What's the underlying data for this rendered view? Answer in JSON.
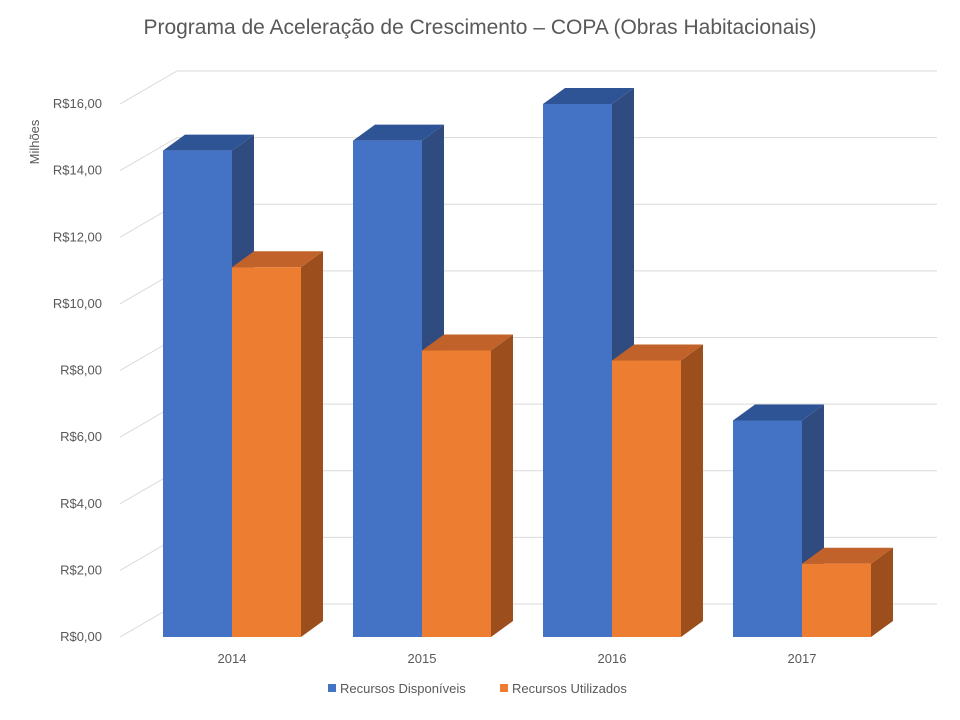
{
  "chart_data": {
    "type": "bar",
    "title": "Programa de Aceleração de Crescimento – COPA (Obras Habitacionais)",
    "ylabel": "Milhões",
    "xlabel": "",
    "categories": [
      "2014",
      "2015",
      "2016",
      "2017"
    ],
    "series": [
      {
        "name": "Recursos Disponíveis",
        "values": [
          14.6,
          14.9,
          16.0,
          6.5
        ],
        "color": "#4472c4",
        "side_color": "#2f4b80",
        "top_color": "#2f5496"
      },
      {
        "name": "Recursos Utilizados",
        "values": [
          11.1,
          8.6,
          8.3,
          2.2
        ],
        "color": "#ed7d31",
        "side_color": "#9c4f1c",
        "top_color": "#c0622a"
      }
    ],
    "ylim": [
      0,
      16
    ],
    "yticks": [
      0,
      2,
      4,
      6,
      8,
      10,
      12,
      14,
      16
    ],
    "ytick_labels": [
      "R$0,00",
      "R$2,00",
      "R$4,00",
      "R$6,00",
      "R$8,00",
      "R$10,00",
      "R$12,00",
      "R$14,00",
      "R$16,00"
    ],
    "grid": true,
    "legend_position": "bottom",
    "style": "3d-clustered-column"
  }
}
